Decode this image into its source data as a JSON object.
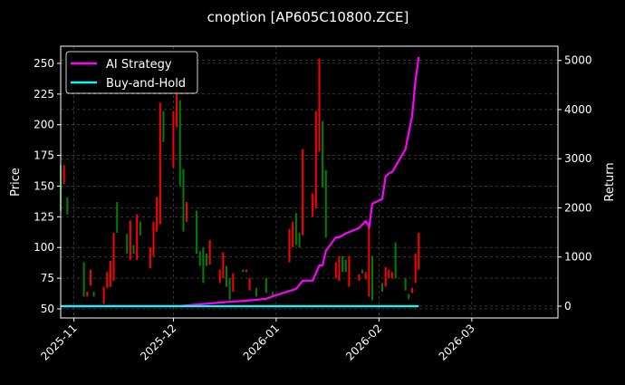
{
  "chart_data": {
    "type": "candlestick+line",
    "title": "cnoption [AP605C10800.ZCE]",
    "ylabel": "Price",
    "y2label": "Return",
    "xlim": [
      "2025-10-28",
      "2026-03-27"
    ],
    "ylim": [
      42.6,
      264
    ],
    "y2lim": [
      -240,
      5290
    ],
    "xticks": [
      "2025-11",
      "2025-12",
      "2026-01",
      "2026-02",
      "2026-03"
    ],
    "yticks": [
      50,
      75,
      100,
      125,
      150,
      175,
      200,
      225,
      250
    ],
    "y2ticks": [
      0,
      1000,
      2000,
      3000,
      4000,
      5000
    ],
    "grid": true,
    "legend": "top-left",
    "colors": {
      "up": "#ff0000",
      "down": "#008000",
      "strategy": "#ff00ff",
      "buyhold": "#00ffff",
      "grid": "#555555"
    },
    "candles_fields": [
      "date",
      "open",
      "high",
      "low",
      "close"
    ],
    "candles": [
      [
        "2025-10-28",
        167,
        167,
        130,
        130
      ],
      [
        "2025-10-29",
        152,
        167,
        152,
        167
      ],
      [
        "2025-10-30",
        141,
        141,
        127,
        127
      ],
      [
        "2025-11-04",
        88,
        88,
        60,
        60
      ],
      [
        "2025-11-05",
        60,
        64,
        60,
        64
      ],
      [
        "2025-11-06",
        69,
        82,
        69,
        82
      ],
      [
        "2025-11-07",
        64,
        64,
        60,
        60
      ],
      [
        "2025-11-10",
        54,
        68,
        54,
        68
      ],
      [
        "2025-11-11",
        67,
        80,
        67,
        80
      ],
      [
        "2025-11-12",
        68,
        89,
        68,
        89
      ],
      [
        "2025-11-13",
        73,
        112,
        73,
        112
      ],
      [
        "2025-11-14",
        137,
        137,
        112,
        112
      ],
      [
        "2025-11-17",
        111,
        111,
        95,
        95
      ],
      [
        "2025-11-18",
        90,
        122,
        90,
        122
      ],
      [
        "2025-11-19",
        102,
        102,
        95,
        95
      ],
      [
        "2025-11-20",
        90,
        127,
        90,
        127
      ],
      [
        "2025-11-21",
        121,
        121,
        110,
        110
      ],
      [
        "2025-11-24",
        83,
        100,
        83,
        100
      ],
      [
        "2025-11-25",
        93,
        121,
        93,
        121
      ],
      [
        "2025-11-26",
        113,
        141,
        113,
        141
      ],
      [
        "2025-11-27",
        119,
        218,
        119,
        218
      ],
      [
        "2025-11-28",
        211,
        211,
        186,
        186
      ],
      [
        "2025-12-01",
        165,
        211,
        165,
        211
      ],
      [
        "2025-12-02",
        198,
        226,
        198,
        226
      ],
      [
        "2025-12-03",
        220,
        220,
        150,
        150
      ],
      [
        "2025-12-04",
        164,
        164,
        113,
        113
      ],
      [
        "2025-12-05",
        121,
        137,
        121,
        137
      ],
      [
        "2025-12-08",
        130,
        130,
        95,
        95
      ],
      [
        "2025-12-09",
        97,
        97,
        85,
        85
      ],
      [
        "2025-12-10",
        100,
        100,
        71,
        71
      ],
      [
        "2025-12-11",
        95,
        95,
        85,
        85
      ],
      [
        "2025-12-12",
        86,
        106,
        86,
        106
      ],
      [
        "2025-12-15",
        71,
        82,
        71,
        82
      ],
      [
        "2025-12-16",
        75,
        96,
        75,
        96
      ],
      [
        "2025-12-17",
        85,
        85,
        68,
        68
      ],
      [
        "2025-12-18",
        75,
        75,
        57,
        57
      ],
      [
        "2025-12-19",
        64,
        79,
        64,
        79
      ],
      [
        "2025-12-22",
        82,
        82,
        80,
        80
      ],
      [
        "2025-12-23",
        80,
        82,
        80,
        82
      ],
      [
        "2025-12-24",
        65,
        75,
        65,
        75
      ],
      [
        "2025-12-26",
        67,
        67,
        60,
        60
      ],
      [
        "2025-12-29",
        75,
        75,
        63,
        63
      ],
      [
        "2025-12-31",
        64,
        64,
        60,
        60
      ],
      [
        "2026-01-05",
        88,
        115,
        88,
        115
      ],
      [
        "2026-01-06",
        100,
        121,
        100,
        121
      ],
      [
        "2026-01-07",
        128,
        128,
        102,
        102
      ],
      [
        "2026-01-08",
        112,
        112,
        100,
        100
      ],
      [
        "2026-01-09",
        110,
        180,
        110,
        180
      ],
      [
        "2026-01-12",
        125,
        144,
        125,
        144
      ],
      [
        "2026-01-13",
        132,
        211,
        132,
        211
      ],
      [
        "2026-01-14",
        178,
        254,
        178,
        254
      ],
      [
        "2026-01-15",
        203,
        203,
        149,
        149
      ],
      [
        "2026-01-16",
        163,
        163,
        108,
        108
      ],
      [
        "2026-01-19",
        75,
        88,
        75,
        88
      ],
      [
        "2026-01-20",
        73,
        93,
        73,
        93
      ],
      [
        "2026-01-21",
        93,
        93,
        80,
        80
      ],
      [
        "2026-01-22",
        90,
        90,
        80,
        80
      ],
      [
        "2026-01-23",
        68,
        93,
        68,
        93
      ],
      [
        "2026-01-26",
        73,
        78,
        73,
        78
      ],
      [
        "2026-01-27",
        82,
        82,
        79,
        79
      ],
      [
        "2026-01-28",
        74,
        80,
        74,
        80
      ],
      [
        "2026-01-29",
        60,
        119,
        60,
        119
      ],
      [
        "2026-01-30",
        93,
        93,
        57,
        57
      ],
      [
        "2026-02-02",
        71,
        71,
        64,
        64
      ],
      [
        "2026-02-03",
        68,
        84,
        68,
        84
      ],
      [
        "2026-02-04",
        75,
        82,
        75,
        82
      ],
      [
        "2026-02-05",
        75,
        80,
        75,
        80
      ],
      [
        "2026-02-06",
        104,
        104,
        75,
        75
      ],
      [
        "2026-02-09",
        75,
        75,
        65,
        65
      ],
      [
        "2026-02-10",
        62,
        62,
        58,
        58
      ],
      [
        "2026-02-11",
        63,
        67,
        63,
        67
      ],
      [
        "2026-02-12",
        71,
        95,
        71,
        95
      ],
      [
        "2026-02-13",
        82,
        112,
        82,
        112
      ]
    ],
    "series": [
      {
        "name": "AI Strategy",
        "axis": "right",
        "x": [
          "2025-10-28",
          "2025-12-03",
          "2025-12-18",
          "2025-12-23",
          "2025-12-29",
          "2025-12-31",
          "2026-01-05",
          "2026-01-07",
          "2026-01-09",
          "2026-01-12",
          "2026-01-14",
          "2026-01-15",
          "2026-01-16",
          "2026-01-19",
          "2026-01-20",
          "2026-01-22",
          "2026-01-26",
          "2026-01-28",
          "2026-01-29",
          "2026-01-29",
          "2026-01-30",
          "2026-02-02",
          "2026-02-03",
          "2026-02-04",
          "2026-02-05",
          "2026-02-09",
          "2026-02-11",
          "2026-02-12",
          "2026-02-13"
        ],
        "y": [
          0,
          5,
          90,
          110,
          150,
          200,
          310,
          350,
          520,
          520,
          830,
          830,
          1125,
          1400,
          1400,
          1480,
          1590,
          1730,
          1620,
          1590,
          2085,
          2180,
          2640,
          2700,
          2730,
          3190,
          3870,
          4580,
          5070
        ]
      },
      {
        "name": "Buy-and-Hold",
        "axis": "right",
        "x": [
          "2025-10-28",
          "2026-02-13"
        ],
        "y": [
          0,
          0
        ]
      }
    ]
  }
}
